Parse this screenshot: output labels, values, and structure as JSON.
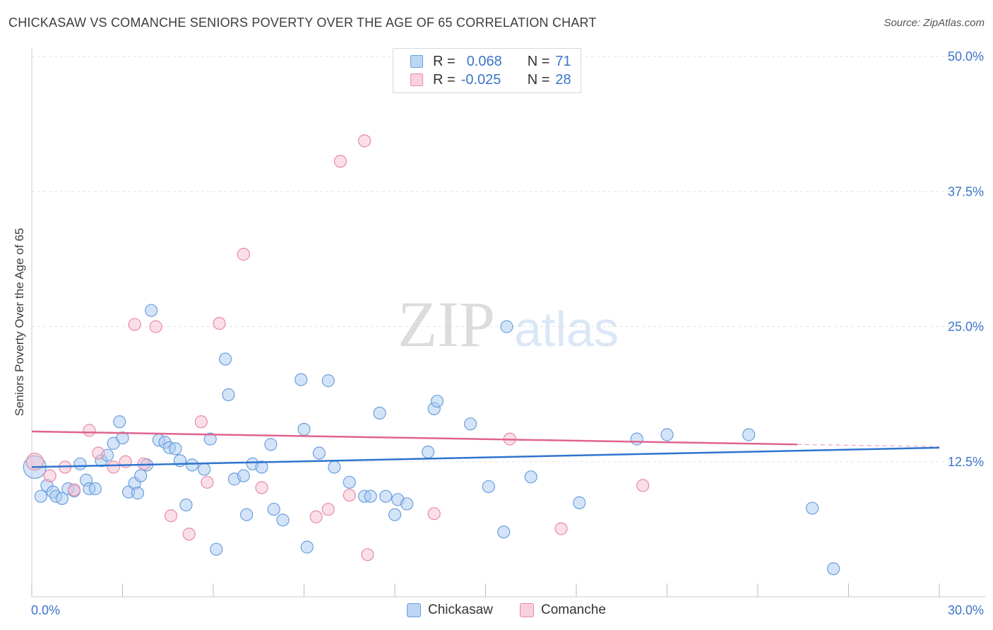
{
  "header": {
    "title": "CHICKASAW VS COMANCHE SENIORS POVERTY OVER THE AGE OF 65 CORRELATION CHART",
    "source": "Source: ZipAtlas.com"
  },
  "watermark": {
    "zip": "ZIP",
    "atlas": "atlas"
  },
  "legend_top": {
    "rows": [
      {
        "r_label": "R =",
        "r_value": "0.068",
        "n_label": "N =",
        "n_value": "71"
      },
      {
        "r_label": "R =",
        "r_value": "-0.025",
        "n_label": "N =",
        "n_value": "28"
      }
    ]
  },
  "legend_bottom": {
    "series1": "Chickasaw",
    "series2": "Comanche"
  },
  "colors": {
    "blue_fill": "#a9c9f2",
    "blue_stroke": "#6a9fdc",
    "blue_line": "#2f74cf",
    "pink_fill": "#f6bfd0",
    "pink_stroke": "#e98aaa",
    "pink_line": "#e0638f",
    "tick_text": "#3b74c9",
    "grid": "#e3e3e3"
  },
  "chart_data": {
    "type": "scatter",
    "title": "CHICKASAW VS COMANCHE SENIORS POVERTY OVER THE AGE OF 65 CORRELATION CHART",
    "xlabel": "",
    "ylabel": "Seniors Poverty Over the Age of 65",
    "xlim": [
      0,
      30
    ],
    "ylim": [
      0,
      50
    ],
    "x_tick_labels": [
      "0.0%",
      "30.0%"
    ],
    "y_ticks": [
      12.5,
      25.0,
      37.5,
      50.0
    ],
    "y_tick_labels": [
      "12.5%",
      "25.0%",
      "37.5%",
      "50.0%"
    ],
    "grid": "horizontal dashed",
    "legend_position": "top-center",
    "series": [
      {
        "name": "Chickasaw",
        "stats": {
          "R": 0.068,
          "N": 71
        },
        "trend": {
          "x": [
            0,
            30
          ],
          "y": [
            12.0,
            13.8
          ]
        },
        "points": [
          [
            0.1,
            12.0
          ],
          [
            0.3,
            9.3
          ],
          [
            0.5,
            10.3
          ],
          [
            0.7,
            9.7
          ],
          [
            0.8,
            9.3
          ],
          [
            1.0,
            9.1
          ],
          [
            1.2,
            10.0
          ],
          [
            1.4,
            9.8
          ],
          [
            1.6,
            12.3
          ],
          [
            1.8,
            10.8
          ],
          [
            1.9,
            10.0
          ],
          [
            2.1,
            10.0
          ],
          [
            2.3,
            12.6
          ],
          [
            2.5,
            13.1
          ],
          [
            2.7,
            14.2
          ],
          [
            2.9,
            16.2
          ],
          [
            3.0,
            14.7
          ],
          [
            3.2,
            9.7
          ],
          [
            3.4,
            10.5
          ],
          [
            3.5,
            9.6
          ],
          [
            3.6,
            11.2
          ],
          [
            3.8,
            12.2
          ],
          [
            3.95,
            26.5
          ],
          [
            4.2,
            14.5
          ],
          [
            4.4,
            14.3
          ],
          [
            4.55,
            13.8
          ],
          [
            4.75,
            13.7
          ],
          [
            4.9,
            12.6
          ],
          [
            5.1,
            8.5
          ],
          [
            5.3,
            12.2
          ],
          [
            5.7,
            11.8
          ],
          [
            5.9,
            14.6
          ],
          [
            6.1,
            4.4
          ],
          [
            6.4,
            22.0
          ],
          [
            6.5,
            18.7
          ],
          [
            6.7,
            10.9
          ],
          [
            7.0,
            11.2
          ],
          [
            7.1,
            7.6
          ],
          [
            7.3,
            12.3
          ],
          [
            7.6,
            12.0
          ],
          [
            7.9,
            14.1
          ],
          [
            8.0,
            8.1
          ],
          [
            8.3,
            7.1
          ],
          [
            8.9,
            20.1
          ],
          [
            9.0,
            15.5
          ],
          [
            9.1,
            4.6
          ],
          [
            9.5,
            13.3
          ],
          [
            9.8,
            20.0
          ],
          [
            10.0,
            12.0
          ],
          [
            10.5,
            10.6
          ],
          [
            11.0,
            9.3
          ],
          [
            11.2,
            9.3
          ],
          [
            11.5,
            17.0
          ],
          [
            11.7,
            9.3
          ],
          [
            12.0,
            7.6
          ],
          [
            12.1,
            9.0
          ],
          [
            12.4,
            8.6
          ],
          [
            13.1,
            13.4
          ],
          [
            13.3,
            17.4
          ],
          [
            13.4,
            18.1
          ],
          [
            14.5,
            16.0
          ],
          [
            15.1,
            10.2
          ],
          [
            15.6,
            6.0
          ],
          [
            15.7,
            25.0
          ],
          [
            16.5,
            11.1
          ],
          [
            18.1,
            8.7
          ],
          [
            20.0,
            14.6
          ],
          [
            21.0,
            15.0
          ],
          [
            23.7,
            15.0
          ],
          [
            25.8,
            8.2
          ],
          [
            26.5,
            2.6
          ]
        ]
      },
      {
        "name": "Comanche",
        "stats": {
          "R": -0.025,
          "N": 28
        },
        "trend": {
          "x": [
            0,
            25.3
          ],
          "y": [
            15.3,
            14.1
          ]
        },
        "trend_dashed_ext": {
          "x": [
            25.3,
            30
          ],
          "y": [
            14.1,
            13.9
          ]
        },
        "points": [
          [
            0.1,
            12.5
          ],
          [
            0.6,
            11.2
          ],
          [
            1.1,
            12.0
          ],
          [
            1.4,
            9.9
          ],
          [
            1.9,
            15.4
          ],
          [
            2.2,
            13.3
          ],
          [
            2.7,
            12.0
          ],
          [
            3.1,
            12.5
          ],
          [
            3.4,
            25.2
          ],
          [
            3.7,
            12.3
          ],
          [
            4.1,
            25.0
          ],
          [
            4.6,
            7.5
          ],
          [
            5.2,
            5.8
          ],
          [
            5.6,
            16.2
          ],
          [
            5.8,
            10.6
          ],
          [
            6.2,
            25.3
          ],
          [
            7.0,
            31.7
          ],
          [
            7.6,
            10.1
          ],
          [
            9.4,
            7.4
          ],
          [
            9.8,
            8.1
          ],
          [
            10.2,
            40.3
          ],
          [
            10.5,
            9.4
          ],
          [
            11.0,
            42.2
          ],
          [
            11.1,
            3.9
          ],
          [
            13.3,
            7.7
          ],
          [
            15.8,
            14.6
          ],
          [
            17.5,
            6.3
          ],
          [
            20.2,
            10.3
          ]
        ]
      }
    ]
  }
}
